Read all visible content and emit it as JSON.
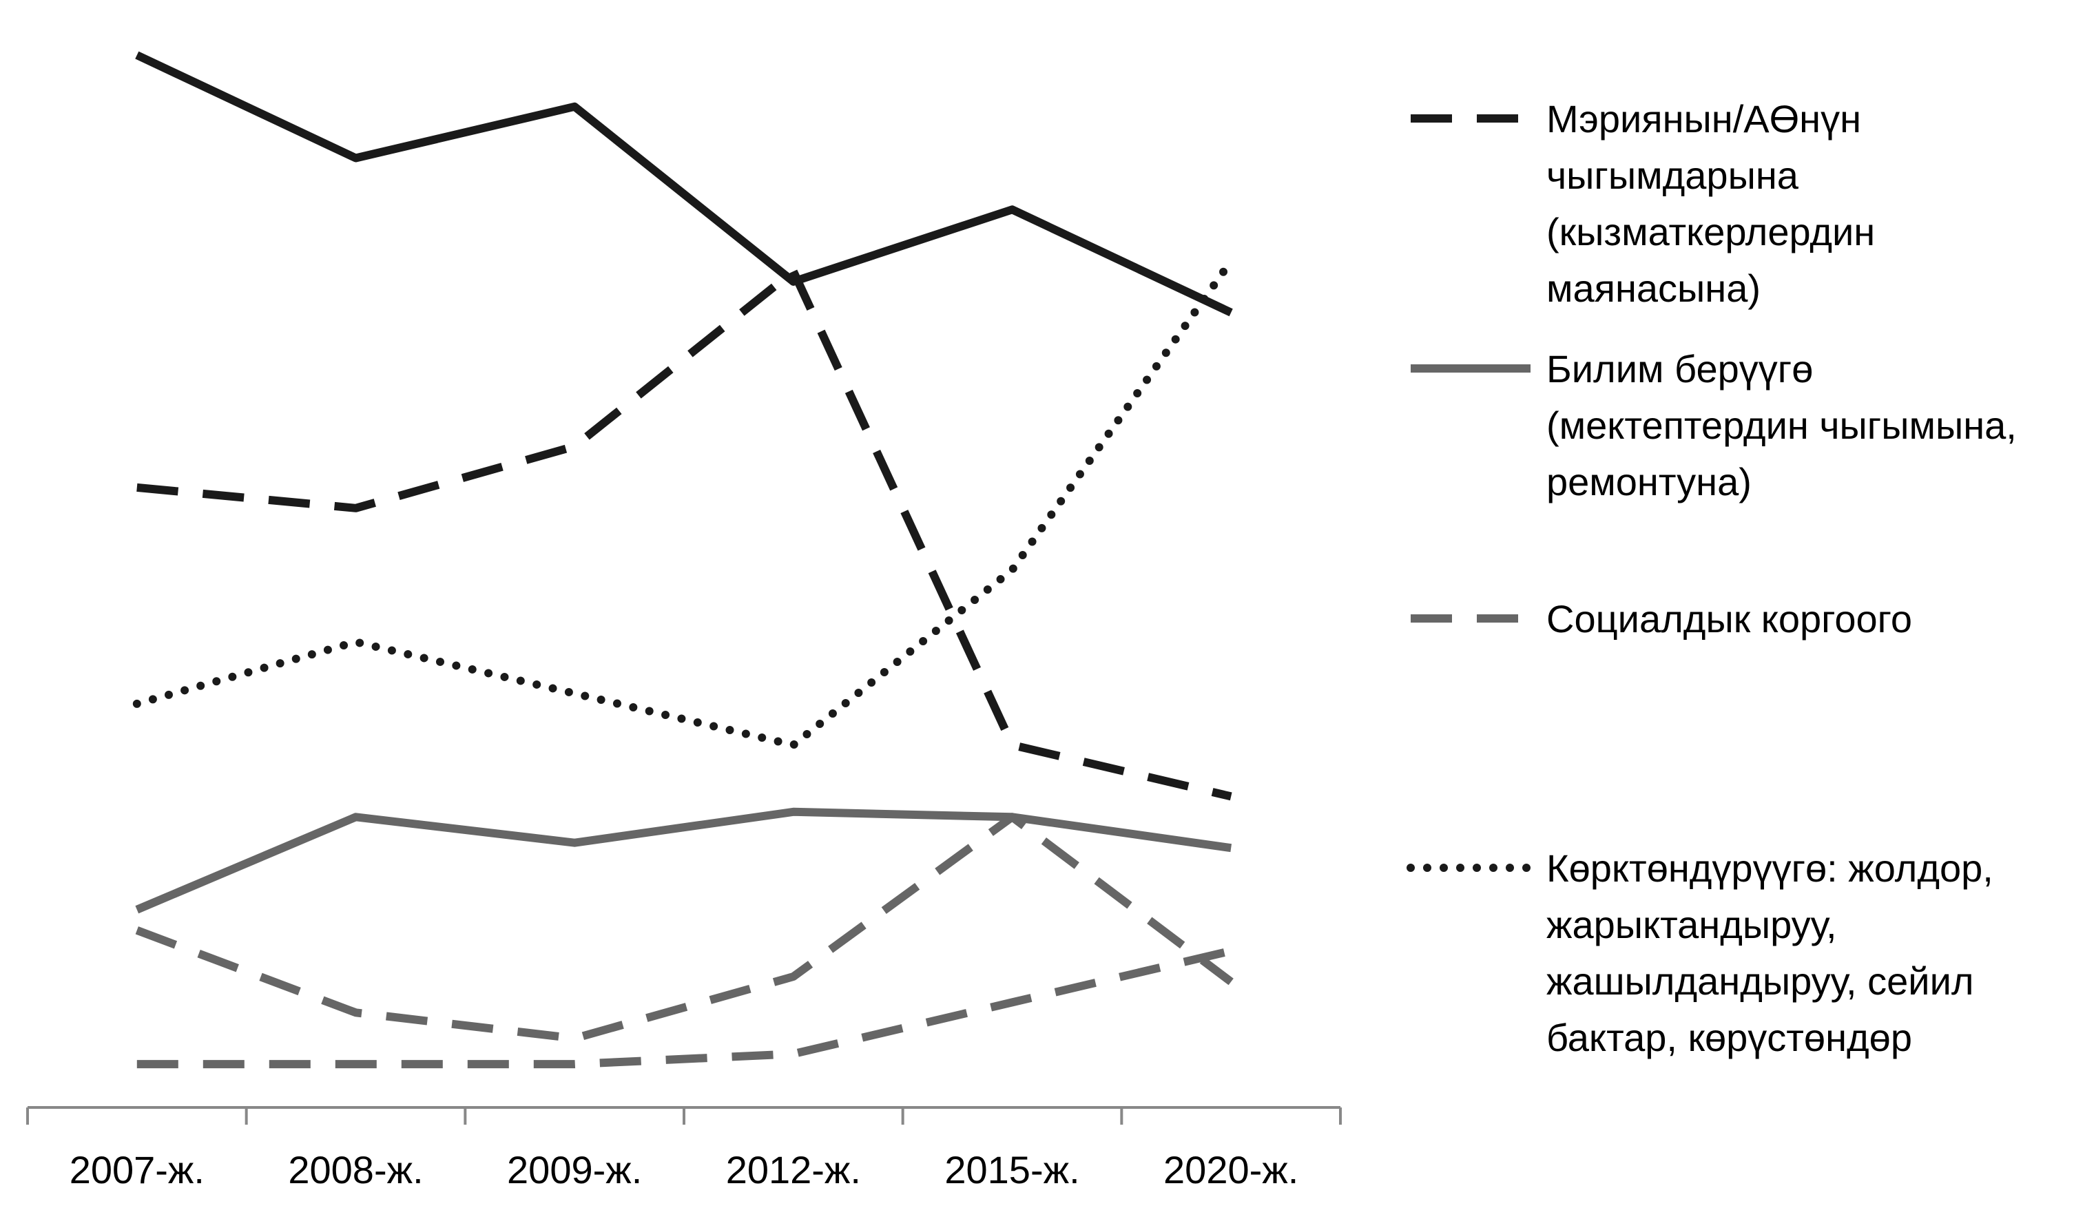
{
  "chart_data": {
    "type": "line",
    "title": "",
    "xlabel": "",
    "ylabel": "",
    "categories": [
      "2007-ж.",
      "2008-ж.",
      "2009-ж.",
      "2012-ж.",
      "2015-ж.",
      "2020-ж."
    ],
    "ylim": [
      0,
      100
    ],
    "grid": false,
    "legend_position": "right",
    "series": [
      {
        "name": "Мэриянын/АӨнүн чыгымдарына (кызматкерлердин маянасына)",
        "values": [
          58,
          56,
          62,
          79,
          33,
          28
        ],
        "color": "#1a1a1a",
        "dash": "dashed",
        "legend_lines": [
          "Мэриянын/АӨнүн",
          "чыгымдарына",
          "(кызматкерлердин",
          "маянасына)"
        ]
      },
      {
        "name": "Билим берүүгө (мектептердин чыгымына, ремонтуна)",
        "values": [
          17,
          26,
          23.5,
          26.5,
          26,
          23
        ],
        "color": "#666666",
        "dash": "solid",
        "legend_lines": [
          "Билим берүүгө",
          "(мектептердин чыгымына,",
          "ремонтуна)"
        ]
      },
      {
        "name": "Социалдык коргоого",
        "values": [
          15,
          7,
          4.5,
          10.5,
          26,
          10
        ],
        "color": "#666666",
        "dash": "dashed",
        "legend_lines": [
          "Социалдык коргоого"
        ]
      },
      {
        "name": "Көрктөндүрүүгө: жолдор, жарыктандыруу, жашылдандыруу, сейил бактар, көрүстөндөр",
        "values": [
          37,
          43,
          38,
          33,
          50,
          80
        ],
        "color": "#1a1a1a",
        "dash": "dotted",
        "legend_lines": [
          "Көрктөндүрүүгө: жолдор,",
          "жарыктандыруу,",
          "жашылдандыруу, сейил",
          "бактар, көрүстөндөр"
        ]
      },
      {
        "name": "",
        "values": [
          100,
          90,
          95,
          78,
          85,
          75
        ],
        "color": "#1a1a1a",
        "dash": "solid",
        "legend_lines": []
      },
      {
        "name": "",
        "values": [
          2,
          2,
          2,
          3,
          8,
          13
        ],
        "color": "#666666",
        "dash": "dashed",
        "legend_lines": []
      }
    ]
  }
}
